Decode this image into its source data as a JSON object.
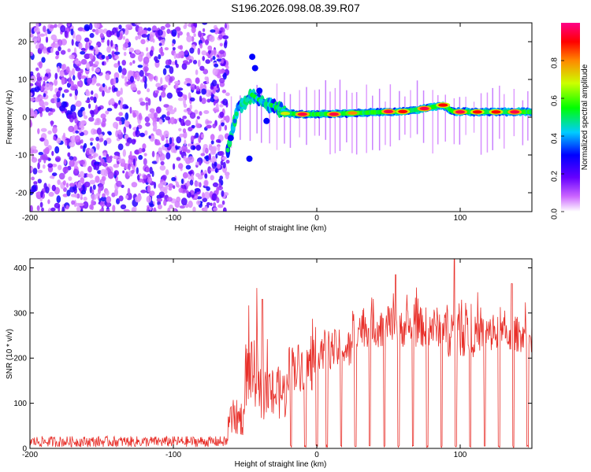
{
  "title": "S196.2026.098.08.39.R07",
  "chart_data": [
    {
      "type": "heatmap",
      "xlabel": "Height of straight line (km)",
      "ylabel": "Frequency (Hz)",
      "xlim": [
        -200,
        150
      ],
      "ylim": [
        -25,
        25
      ],
      "xticks": [
        -200,
        -100,
        0,
        100
      ],
      "yticks": [
        -20,
        -10,
        0,
        10,
        20
      ],
      "colorbar": {
        "label": "Normalized spectral amplitude",
        "range": [
          0,
          1
        ],
        "ticks": [
          "0.0",
          "0.2",
          "0.4",
          "0.6",
          "0.8"
        ],
        "tick_values": [
          0,
          0.2,
          0.4,
          0.6,
          0.8
        ]
      },
      "noise_region": {
        "x_range": [
          -200,
          -62
        ],
        "freq_range": [
          -25,
          25
        ],
        "amplitude": "low (0.1–0.3)"
      },
      "signal_ridge": [
        {
          "x": -60,
          "f": -5.5
        },
        {
          "x": -55,
          "f": 2.5
        },
        {
          "x": -50,
          "f": 4
        },
        {
          "x": -45,
          "f": 6
        },
        {
          "x": -40,
          "f": 4.5
        },
        {
          "x": -35,
          "f": 3.5
        },
        {
          "x": -30,
          "f": 3
        },
        {
          "x": -20,
          "f": 1
        },
        {
          "x": -10,
          "f": 0.8
        },
        {
          "x": 0,
          "f": 0.8
        },
        {
          "x": 20,
          "f": 1
        },
        {
          "x": 40,
          "f": 1.3
        },
        {
          "x": 60,
          "f": 1.5
        },
        {
          "x": 75,
          "f": 2.3
        },
        {
          "x": 88,
          "f": 3.2
        },
        {
          "x": 95,
          "f": 1.5
        },
        {
          "x": 110,
          "f": 1.4
        },
        {
          "x": 130,
          "f": 1.4
        },
        {
          "x": 150,
          "f": 1.4
        }
      ],
      "peaks": [
        {
          "x": -22,
          "f": 1,
          "amp": 0.7
        },
        {
          "x": -10,
          "f": 0.8,
          "amp": 0.95
        },
        {
          "x": 12,
          "f": 0.8,
          "amp": 0.95
        },
        {
          "x": 25,
          "f": 1.1,
          "amp": 0.8
        },
        {
          "x": 50,
          "f": 1.5,
          "amp": 0.95
        },
        {
          "x": 60,
          "f": 1.5,
          "amp": 0.9
        },
        {
          "x": 75,
          "f": 2.3,
          "amp": 0.95
        },
        {
          "x": 88,
          "f": 3.2,
          "amp": 0.9
        },
        {
          "x": 100,
          "f": 1.4,
          "amp": 0.95
        },
        {
          "x": 112,
          "f": 1.4,
          "amp": 0.9
        },
        {
          "x": 125,
          "f": 1.4,
          "amp": 0.9
        },
        {
          "x": 138,
          "f": 1.4,
          "amp": 0.95
        }
      ]
    },
    {
      "type": "line",
      "xlabel": "Height of straight line (km)",
      "ylabel": "SNR (10 * v/v)",
      "xlim": [
        -200,
        150
      ],
      "ylim": [
        0,
        420
      ],
      "xticks": [
        -200,
        -100,
        0,
        100
      ],
      "yticks": [
        0,
        100,
        200,
        300,
        400
      ],
      "color": "#e8302a",
      "segments": [
        {
          "x_start": -200,
          "x_end": -62,
          "mean": 15,
          "spread": 12
        },
        {
          "x_start": -62,
          "x_end": -50,
          "mean": 60,
          "spread": 80
        },
        {
          "x_start": -50,
          "x_end": -40,
          "mean": 150,
          "spread": 150
        },
        {
          "x_start": -40,
          "x_end": -20,
          "mean": 110,
          "spread": 120
        },
        {
          "x_start": -20,
          "x_end": 0,
          "mean": 170,
          "spread": 110
        },
        {
          "x_start": 0,
          "x_end": 25,
          "mean": 210,
          "spread": 90
        },
        {
          "x_start": 25,
          "x_end": 90,
          "mean": 260,
          "spread": 90
        },
        {
          "x_start": 90,
          "x_end": 110,
          "mean": 250,
          "spread": 120
        },
        {
          "x_start": 110,
          "x_end": 150,
          "mean": 245,
          "spread": 80
        }
      ],
      "dropouts_x": [
        -18,
        -8,
        0,
        7,
        17,
        27,
        37,
        47,
        57,
        67,
        77,
        87,
        97,
        107,
        117,
        127,
        137,
        147
      ],
      "peak_spikes": [
        {
          "x": -38,
          "y": 330
        },
        {
          "x": 55,
          "y": 385
        },
        {
          "x": 96,
          "y": 420
        },
        {
          "x": 136,
          "y": 365
        }
      ]
    }
  ]
}
